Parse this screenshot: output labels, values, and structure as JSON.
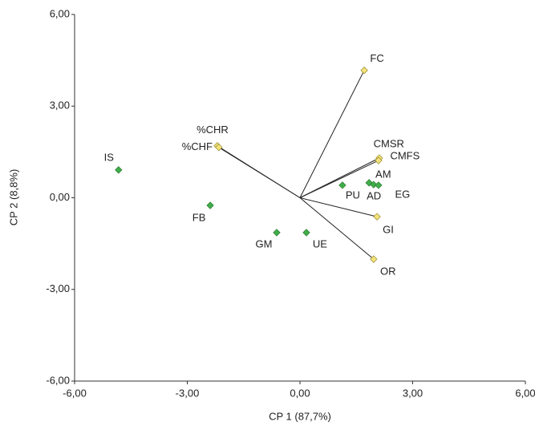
{
  "chart_data": {
    "type": "biplot",
    "x_label": "CP 1 (87,7%)",
    "y_label": "CP 2 (8,8%)",
    "xlim": [
      -6,
      6
    ],
    "ylim": [
      -6,
      6
    ],
    "xticks": [
      {
        "value": -6,
        "label": "-6,00"
      },
      {
        "value": -3,
        "label": "-3,00"
      },
      {
        "value": 0,
        "label": "0,00"
      },
      {
        "value": 3,
        "label": "3,00"
      },
      {
        "value": 6,
        "label": "6,00"
      }
    ],
    "yticks": [
      {
        "value": -6,
        "label": "-6,00"
      },
      {
        "value": -3,
        "label": "-3,00"
      },
      {
        "value": 0,
        "label": "0,00"
      },
      {
        "value": 3,
        "label": "3,00"
      },
      {
        "value": 6,
        "label": "6,00"
      }
    ],
    "scores": {
      "color": "#3fae49",
      "label_color": "#3a9aa8",
      "labels": [
        "IS",
        "FB",
        "GM",
        "UE",
        "PU",
        "AD",
        "AM",
        "EG"
      ],
      "x": [
        -4.83,
        -2.39,
        -0.62,
        0.17,
        1.13,
        1.84,
        1.96,
        2.09
      ],
      "y": [
        0.91,
        -0.25,
        -1.14,
        -1.14,
        0.41,
        0.49,
        0.43,
        0.41
      ]
    },
    "loadings": {
      "color": "#f2e27a",
      "label_color": "#222",
      "labels": [
        "FC",
        "%CHR",
        "%CHF",
        "CMSR",
        "CMFS",
        "GI",
        "OR"
      ],
      "x": [
        1.71,
        -2.2,
        -2.16,
        2.11,
        2.09,
        2.05,
        1.96
      ],
      "y": [
        4.17,
        1.7,
        1.65,
        1.3,
        1.22,
        -0.62,
        -2.01
      ]
    }
  }
}
